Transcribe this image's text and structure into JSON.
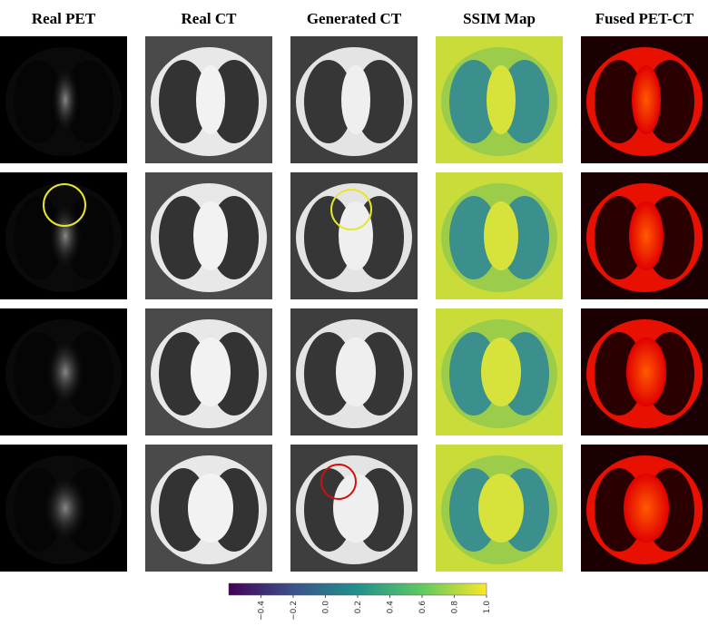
{
  "columns": [
    "Real PET",
    "Real CT",
    "Generated CT",
    "SSIM Map",
    "Fused PET-CT"
  ],
  "colorbar": {
    "lim": [
      -0.6,
      1.0
    ],
    "ticks": [
      {
        "value": -0.4,
        "label": "−0.4"
      },
      {
        "value": -0.2,
        "label": "−0.2"
      },
      {
        "value": 0,
        "label": "0.0"
      },
      {
        "value": 0.2,
        "label": "0.2"
      },
      {
        "value": 0.4,
        "label": "0.4"
      },
      {
        "value": 0.6,
        "label": "0.6"
      },
      {
        "value": 0.8,
        "label": "0.8"
      },
      {
        "value": 1.0,
        "label": "1.0"
      }
    ]
  }
}
